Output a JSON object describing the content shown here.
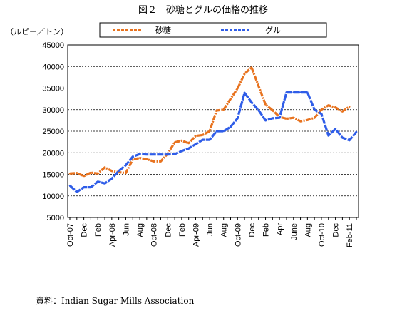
{
  "title": "図２　砂糖とグルの価格の推移",
  "source": "資料：Indian Sugar Mills Association",
  "chart_data": {
    "type": "line",
    "title": "図２　砂糖とグルの価格の推移",
    "ylabel": "（ルピー／トン）",
    "xlabel": "",
    "ylim": [
      5000,
      45000
    ],
    "yticks": [
      5000,
      10000,
      15000,
      20000,
      25000,
      30000,
      35000,
      40000,
      45000
    ],
    "grid": "horizontal dashed",
    "legend_position": "top",
    "x": [
      "Oct-07",
      "Nov-07",
      "Dec-07",
      "Jan-08",
      "Feb-08",
      "Mar-08",
      "Apr-08",
      "May-08",
      "Jun-08",
      "Jul-08",
      "Aug-08",
      "Sep-08",
      "Oct-08",
      "Nov-08",
      "Dec-08",
      "Jan-09",
      "Feb-09",
      "Mar-09",
      "Apr-09",
      "May-09",
      "Jun-09",
      "Jul-09",
      "Aug-09",
      "Sep-09",
      "Oct-09",
      "Nov-09",
      "Dec-09",
      "Jan-10",
      "Feb-10",
      "Mar-10",
      "Apr-10",
      "May-10",
      "Jun-10",
      "Jul-10",
      "Aug-10",
      "Sep-10",
      "Oct-10",
      "Nov-10",
      "Dec-10",
      "Jan-11",
      "Feb-11",
      "Mar-11"
    ],
    "xtick_labels": [
      "Oct-07",
      "Dec",
      "Feb",
      "Apr-08",
      "Jun",
      "Aug",
      "Oct-08",
      "Dec",
      "Feb",
      "Apr-09",
      "Jun",
      "Aug",
      "Oct-09",
      "Dec",
      "Feb",
      "Apr",
      "June",
      "Aug",
      "Oct-10",
      "Dec",
      "Feb-11"
    ],
    "series": [
      {
        "name": "砂糖",
        "color": "#e8731f",
        "values": [
          15200,
          15300,
          14600,
          15400,
          15200,
          16600,
          15800,
          15500,
          15300,
          18400,
          18800,
          18500,
          18000,
          18000,
          19800,
          22400,
          22800,
          22200,
          23900,
          24100,
          25000,
          29800,
          30000,
          32500,
          34900,
          38300,
          39800,
          35500,
          31200,
          29900,
          28300,
          27900,
          28100,
          27300,
          27600,
          28100,
          30000,
          31000,
          30500,
          29600,
          30700,
          null
        ]
      },
      {
        "name": "グル",
        "color": "#2f5de8",
        "values": [
          12400,
          10900,
          12000,
          12000,
          13300,
          12900,
          14000,
          15800,
          17100,
          19100,
          19700,
          19600,
          19600,
          19600,
          19600,
          19700,
          20400,
          21000,
          22000,
          23000,
          23000,
          25000,
          25000,
          26000,
          28000,
          33900,
          31700,
          29900,
          27500,
          28000,
          28100,
          34000,
          34000,
          34000,
          34000,
          30000,
          29000,
          24000,
          25500,
          23500,
          22900,
          24800
        ]
      }
    ]
  }
}
